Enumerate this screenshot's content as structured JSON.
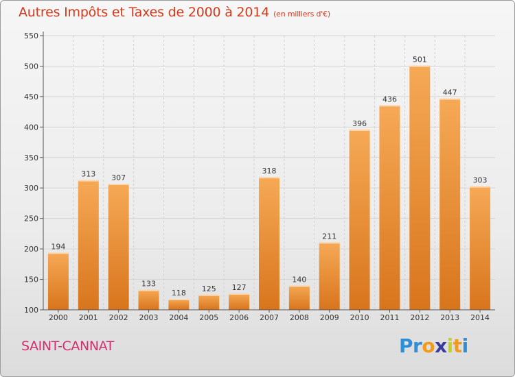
{
  "title": {
    "main": "Autres Impôts et Taxes de 2000 à 2014",
    "unit": "(en milliers d'€)"
  },
  "commune": "SAINT-CANNAT",
  "logo": {
    "text": "Proxiti",
    "letters": [
      "P",
      "r",
      "o",
      "x",
      "i",
      "t",
      "i"
    ],
    "colors": [
      "#2e8fd8",
      "#2e8fd8",
      "#f39a1a",
      "#3b3b9e",
      "#c2d21e",
      "#f39a1a",
      "#2e8fd8"
    ]
  },
  "colors": {
    "bar_top": "#f6a956",
    "bar_bottom": "#d8751c",
    "title": "#d23a1e",
    "commune": "#cf2f6e"
  },
  "chart_data": {
    "type": "bar",
    "categories": [
      "2000",
      "2001",
      "2002",
      "2003",
      "2004",
      "2005",
      "2006",
      "2007",
      "2008",
      "2009",
      "2010",
      "2011",
      "2012",
      "2013",
      "2014"
    ],
    "values": [
      194,
      313,
      307,
      133,
      118,
      125,
      127,
      318,
      140,
      211,
      396,
      436,
      501,
      447,
      303
    ],
    "data_labels": [
      "194",
      "313",
      "307",
      "133",
      "118",
      "125",
      "127",
      "318",
      "140",
      "211",
      "396",
      "436",
      "501",
      "447",
      "303"
    ],
    "ylim": [
      100,
      550
    ],
    "yticks": [
      "100",
      "150",
      "200",
      "250",
      "300",
      "350",
      "400",
      "450",
      "500",
      "550"
    ],
    "title": "Autres Impôts et Taxes de 2000 à 2014",
    "xlabel": "",
    "ylabel": "",
    "grid": true
  }
}
